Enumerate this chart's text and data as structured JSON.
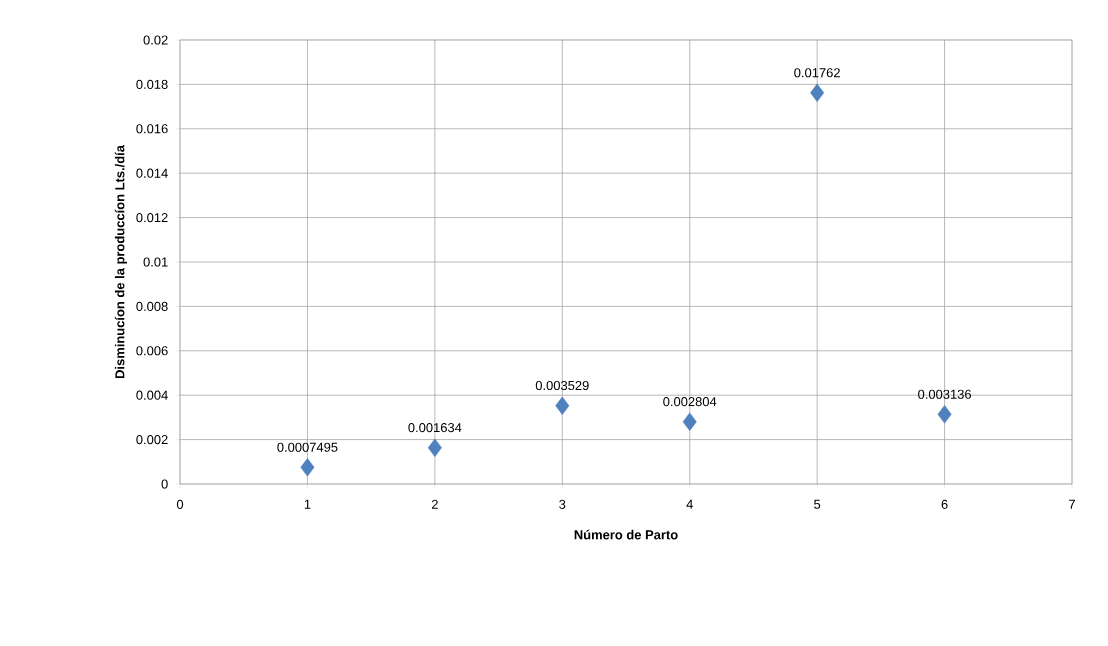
{
  "chart_data": {
    "type": "scatter",
    "xlabel": "Número de Parto",
    "ylabel": "Disminucíon de la produccíon Lts./día",
    "x": [
      1,
      2,
      3,
      4,
      5,
      6
    ],
    "values": [
      0.0007495,
      0.001634,
      0.003529,
      0.002804,
      0.01762,
      0.003136
    ],
    "color": "#4f81bd",
    "marker": "diamond",
    "data_labels": true,
    "grid": true,
    "xlim": [
      0,
      7
    ],
    "xticks": [
      0,
      1,
      2,
      3,
      4,
      5,
      6,
      7
    ],
    "ylim": [
      0,
      0.02
    ],
    "yticks": [
      0,
      0.002,
      0.004,
      0.006,
      0.008,
      0.01,
      0.012,
      0.014,
      0.016,
      0.018,
      0.02
    ]
  }
}
